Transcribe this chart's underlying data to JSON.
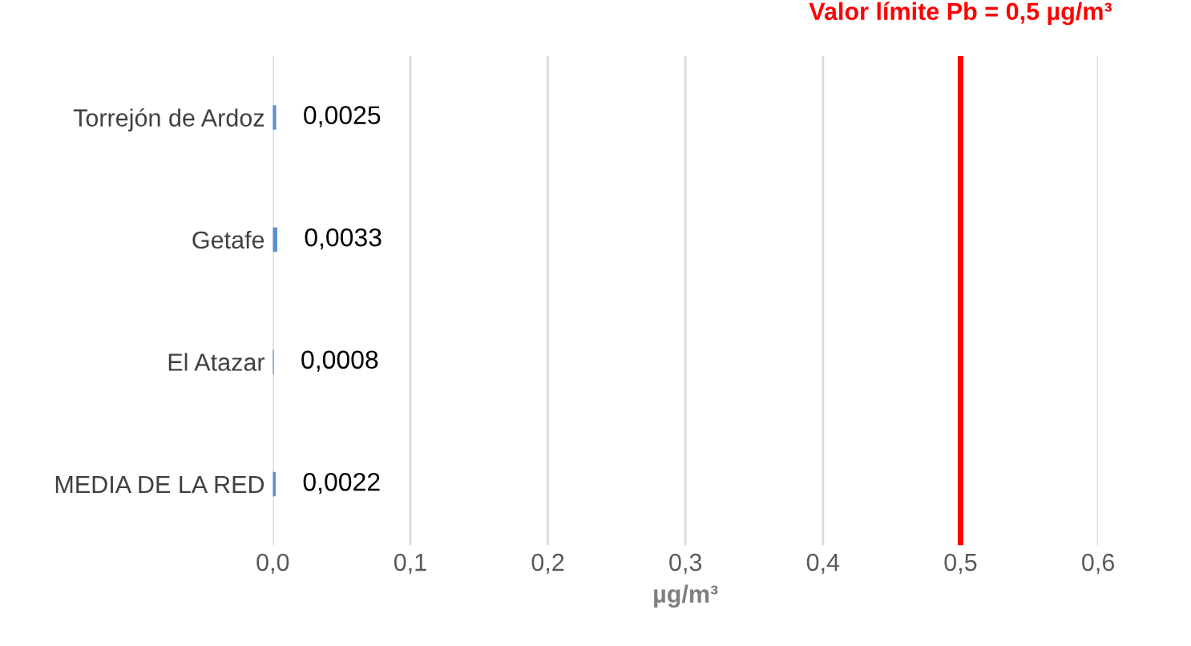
{
  "chart_data": {
    "type": "bar",
    "orientation": "horizontal",
    "categories": [
      "Torrejón de Ardoz",
      "Getafe",
      "El Atazar",
      "MEDIA DE LA RED"
    ],
    "values": [
      0.0025,
      0.0033,
      0.0008,
      0.0022
    ],
    "value_labels": [
      "0,0025",
      "0,0033",
      "0,0008",
      "0,0022"
    ],
    "color": "#5b8fd0",
    "xlabel": "µg/m³",
    "xlim": [
      0,
      0.6
    ],
    "xticks": [
      {
        "value": 0,
        "label": "0,0"
      },
      {
        "value": 0.1,
        "label": "0,1"
      },
      {
        "value": 0.2,
        "label": "0,2"
      },
      {
        "value": 0.3,
        "label": "0,3"
      },
      {
        "value": 0.4,
        "label": "0,4"
      },
      {
        "value": 0.5,
        "label": "0,5"
      },
      {
        "value": 0.6,
        "label": "0,6"
      }
    ],
    "ref_lines": [
      {
        "axis": "x",
        "value": 0.5,
        "label": "Valor límite Pb = 0,5 µg/m³",
        "color": "#ff0000"
      }
    ],
    "grid": "x"
  }
}
